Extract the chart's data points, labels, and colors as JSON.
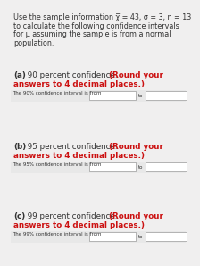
{
  "title_line1": "Use the sample information χ̅ = 43, σ = 3, n = 13",
  "title_line2": "to calculate the following confidence intervals",
  "title_line3": "for μ assuming the sample is from a normal",
  "title_line4": "population.",
  "sections": [
    {
      "label": "(a)",
      "mid_text": " 90 percent confidence. ",
      "red_text": "(Round your",
      "red_text2": "answers to 4 decimal places.)",
      "interval_label": "The 90% confidence interval is from"
    },
    {
      "label": "(b)",
      "mid_text": " 95 percent confidence. ",
      "red_text": "(Round your",
      "red_text2": "answers to 4 decimal places.)",
      "interval_label": "The 95% confidence interval is from"
    },
    {
      "label": "(c)",
      "mid_text": " 99 percent confidence. ",
      "red_text": "(Round your",
      "red_text2": "answers to 4 decimal places.)",
      "interval_label": "The 99% confidence interval is from"
    }
  ],
  "bg_color": "#f0efef",
  "white": "#ffffff",
  "text_color": "#333333",
  "red_color": "#cc1111",
  "box_color": "#ffffff",
  "box_border": "#999999",
  "row_bg": "#e8e8e8",
  "title_fontsize": 5.8,
  "section_fontsize": 6.3,
  "small_fontsize": 4.0,
  "to_fontsize": 4.0
}
